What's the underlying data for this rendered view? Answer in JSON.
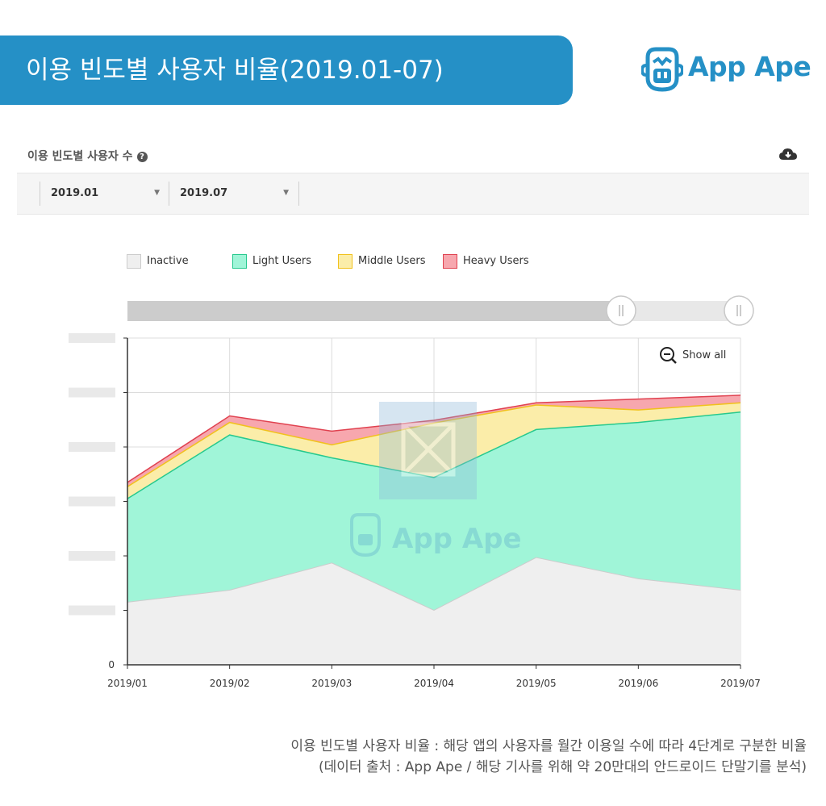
{
  "banner": {
    "title": "이용 빈도별 사용자 비율(2019.01-07)"
  },
  "logo": {
    "text": "App Ape",
    "icon": "monkey-face-icon",
    "color": "#2590c6"
  },
  "header": {
    "title": "이용 빈도별 사용자 수",
    "help_icon": "question-circle-icon",
    "download_icon": "cloud-download-icon"
  },
  "filters": {
    "from": "2019.01",
    "to": "2019.07"
  },
  "legend": [
    {
      "label": "Inactive",
      "color": "#efefef",
      "border": "#cccccc"
    },
    {
      "label": "Light Users",
      "color": "#a0f5d8",
      "border": "#26c98e"
    },
    {
      "label": "Middle Users",
      "color": "#fbeda9",
      "border": "#f1c11c"
    },
    {
      "label": "Heavy Users",
      "color": "#f7a7ae",
      "border": "#e0414f"
    }
  ],
  "zoom": {
    "label": "Show all",
    "icon": "zoom-out-icon"
  },
  "watermark": {
    "text": "App Ape"
  },
  "chart_data": {
    "type": "area",
    "stacked": true,
    "x": [
      "2019/01",
      "2019/02",
      "2019/03",
      "2019/04",
      "2019/05",
      "2019/06",
      "2019/07"
    ],
    "y_tick_labels": [
      "0"
    ],
    "series": [
      {
        "name": "Inactive",
        "values": [
          1.15,
          1.37,
          1.87,
          1.0,
          1.97,
          1.58,
          1.37
        ],
        "color": "#efefef"
      },
      {
        "name": "Light Users",
        "values": [
          1.9,
          2.85,
          1.93,
          2.44,
          2.35,
          2.87,
          3.27
        ],
        "color": "#a0f5d8"
      },
      {
        "name": "Middle Users",
        "values": [
          0.22,
          0.23,
          0.24,
          1.0,
          0.45,
          0.23,
          0.17
        ],
        "color": "#fbeda9"
      },
      {
        "name": "Heavy Users",
        "values": [
          0.08,
          0.12,
          0.25,
          0.05,
          0.04,
          0.2,
          0.14
        ],
        "color": "#f7a7ae"
      }
    ],
    "ylim": [
      0,
      6
    ],
    "grid": true,
    "legend_position": "top-left"
  },
  "caption": {
    "line1": "이용 빈도별 사용자 비율 : 해당 앱의 사용자를 월간 이용일 수에 따라 4단계로 구분한 비율",
    "line2": "(데이터 출처 : App Ape / 해당 기사를 위해 약 20만대의 안드로이드 단말기를 분석)"
  }
}
